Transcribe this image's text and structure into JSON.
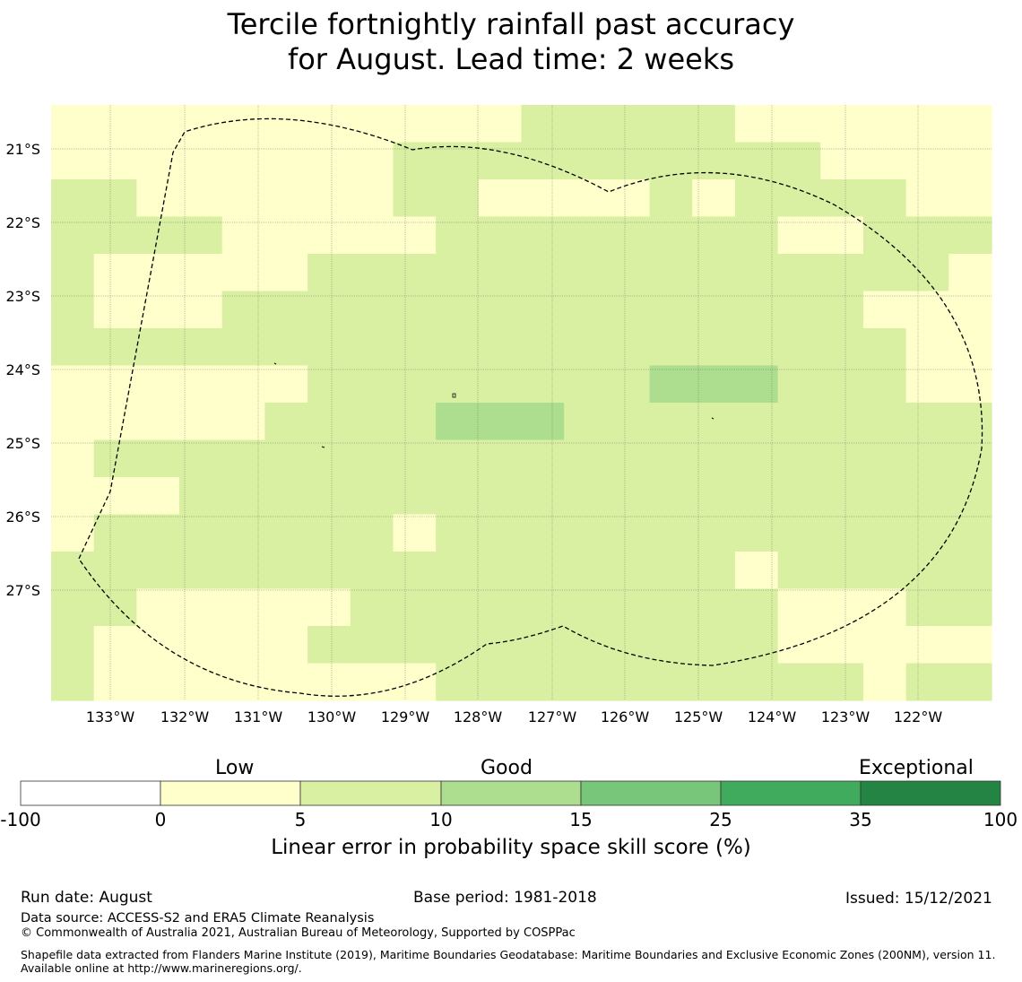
{
  "title": {
    "line1": "Tercile fortnightly rainfall past accuracy",
    "line2": "for August. Lead time: 2 weeks"
  },
  "map": {
    "lat_labels": [
      "21°S",
      "22°S",
      "23°S",
      "24°S",
      "25°S",
      "26°S",
      "27°S"
    ],
    "lon_labels": [
      "133°W",
      "132°W",
      "131°W",
      "130°W",
      "129°W",
      "128°W",
      "127°W",
      "126°W",
      "125°W",
      "124°W",
      "123°W",
      "122°W"
    ],
    "boundary": "exclusive-economic-zone-dashed",
    "grid_values_class": {
      "legend": "0 = 0–5 (pale yellow), 1 = 5–10 (light green), 2 = 10–15 (green)",
      "rows": [
        "0000000000011111000000",
        "0000000011111111110000",
        "1100000011000010111100",
        "1111000001111111100111",
        "1000001111111111111110",
        "1000111111111111111000",
        "1111111111111111111100",
        "0000001111111122211100",
        "0000011112221111111111",
        "0111111111111111111111",
        "0001111111111111111111",
        "0111111101111111111111",
        "1111111111111111011111",
        "1100000111111111100011",
        "1000001111111111100000",
        "1000000001111111111011"
      ]
    }
  },
  "colorbar": {
    "category_labels": [
      "Low",
      "Good",
      "Exceptional"
    ],
    "ticks": [
      "-100",
      "0",
      "5",
      "10",
      "15",
      "25",
      "35",
      "100"
    ],
    "colors": [
      "#ffffff",
      "#ffffcc",
      "#d9f0a3",
      "#addd8e",
      "#78c679",
      "#41ab5d",
      "#238443"
    ],
    "xlabel": "Linear error in probability space skill score (%)"
  },
  "footer": {
    "run_date": "Run date: August",
    "base_period": "Base period: 1981-2018",
    "issued": "Issued: 15/12/2021",
    "data_source": "Data source: ACCESS-S2 and ERA5 Climate Reanalysis",
    "copyright": "© Commonwealth of Australia 2021, Australian Bureau of Meteorology, Supported by COSPPac",
    "shapefile": "Shapefile data extracted from Flanders Marine Institute (2019), Maritime Boundaries Geodatabase: Maritime Boundaries and Exclusive Economic Zones (200NM), version 11. Available online at http://www.marineregions.org/."
  }
}
